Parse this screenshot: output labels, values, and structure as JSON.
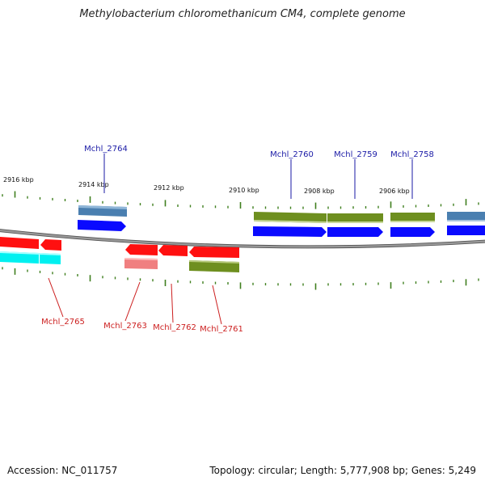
{
  "title": "Methylobacterium chloromethanicum CM4, complete genome",
  "footer": {
    "accession": "Accession: NC_011757",
    "topology": "Topology: circular; Length: 5,777,908 bp; Genes: 5,249"
  },
  "colors": {
    "backbone": "#8a8a8a",
    "tick": "#3f7f1e",
    "label_top": "#1a1aa6",
    "label_bottom": "#cc1f1f",
    "cds_blue": "#0a0aff",
    "gene_steel": "#4a7fb0",
    "gene_olive": "#6e8f1f",
    "cds_red": "#ff1010",
    "rna_pink": "#f07f80",
    "cyan": "#00f0f0"
  },
  "map": {
    "kbp_labels": [
      "2916 kbp",
      "2914 kbp",
      "2912 kbp",
      "2910 kbp",
      "2908 kbp",
      "2906 kbp"
    ],
    "top_labels": [
      "Mchl_2764",
      "Mchl_2760",
      "Mchl_2759",
      "Mchl_2758"
    ],
    "bottom_labels": [
      "Mchl_2765",
      "Mchl_2763",
      "Mchl_2762",
      "Mchl_2761"
    ]
  }
}
